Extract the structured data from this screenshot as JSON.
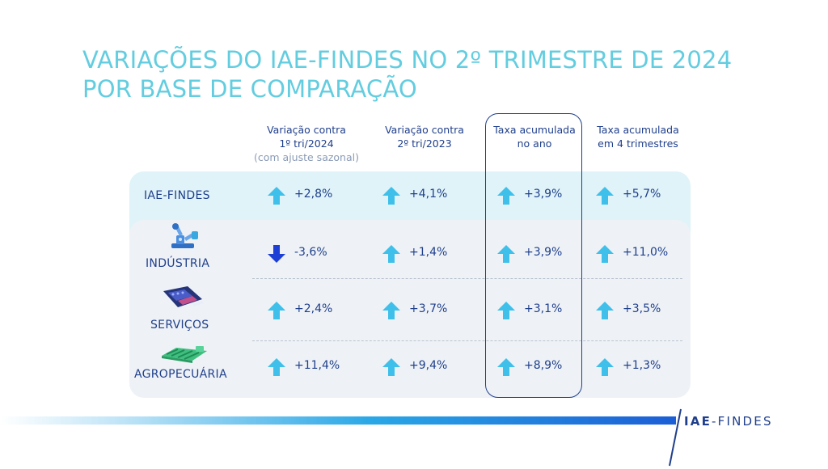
{
  "title": {
    "line1": "VARIAÇÕES DO IAE-FINDES NO 2º TRIMESTRE DE 2024",
    "line2": "POR BASE DE COMPARAÇÃO"
  },
  "columns": [
    {
      "line1": "Variação contra",
      "line2": "1º tri/2024",
      "note": "(com ajuste sazonal)"
    },
    {
      "line1": "Variação contra",
      "line2": "2º tri/2023",
      "note": ""
    },
    {
      "line1": "Taxa acumulada",
      "line2": "no ano",
      "note": ""
    },
    {
      "line1": "Taxa acumulada",
      "line2": "em 4 trimestres",
      "note": ""
    }
  ],
  "colors": {
    "up": "#3fc0ea",
    "down": "#1d3fd6",
    "text": "#1f3f8c",
    "title": "#63cde0"
  },
  "rows": [
    {
      "label": "IAE-FINDES",
      "icon": "none",
      "cells": [
        {
          "dir": "up",
          "value": "+2,8%"
        },
        {
          "dir": "up",
          "value": "+4,1%"
        },
        {
          "dir": "up",
          "value": "+3,9%"
        },
        {
          "dir": "up",
          "value": "+5,7%"
        }
      ]
    },
    {
      "label": "INDÚSTRIA",
      "icon": "robot-arm-icon",
      "cells": [
        {
          "dir": "down",
          "value": "-3,6%"
        },
        {
          "dir": "up",
          "value": "+1,4%"
        },
        {
          "dir": "up",
          "value": "+3,9%"
        },
        {
          "dir": "up",
          "value": "+11,0%"
        }
      ]
    },
    {
      "label": "SERVIÇOS",
      "icon": "card-machine-icon",
      "cells": [
        {
          "dir": "up",
          "value": "+2,4%"
        },
        {
          "dir": "up",
          "value": "+3,7%"
        },
        {
          "dir": "up",
          "value": "+3,1%"
        },
        {
          "dir": "up",
          "value": "+3,5%"
        }
      ]
    },
    {
      "label": "AGROPECUÁRIA",
      "icon": "crops-icon",
      "cells": [
        {
          "dir": "up",
          "value": "+11,4%"
        },
        {
          "dir": "up",
          "value": "+9,4%"
        },
        {
          "dir": "up",
          "value": "+8,9%"
        },
        {
          "dir": "up",
          "value": "+1,3%"
        }
      ]
    }
  ],
  "brand": {
    "bold": "IAE",
    "rest": "-FINDES"
  }
}
